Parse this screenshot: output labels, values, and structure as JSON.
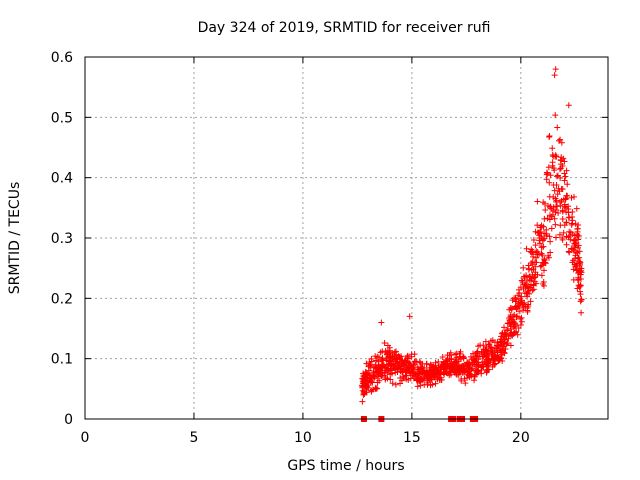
{
  "chart_data": {
    "type": "scatter",
    "title": "Day 324 of 2019, SRMTID for receiver rufi",
    "xlabel": "GPS time / hours",
    "ylabel": "SRMTID / TECUs",
    "xlim": [
      0,
      24
    ],
    "ylim": [
      0,
      0.6
    ],
    "xticks": [
      0,
      5,
      10,
      15,
      20
    ],
    "yticks": [
      0,
      0.1,
      0.2,
      0.3,
      0.4,
      0.5,
      0.6
    ],
    "grid": true,
    "marker": "+",
    "color": "#ff0000",
    "series": [
      {
        "name": "SRMTID",
        "description": "dense cloud of points from ~12.7 h to ~22.8 h",
        "envelope": [
          {
            "x": 12.7,
            "lo": 0.02,
            "hi": 0.08
          },
          {
            "x": 13.0,
            "lo": 0.03,
            "hi": 0.11
          },
          {
            "x": 13.5,
            "lo": 0.04,
            "hi": 0.12
          },
          {
            "x": 14.0,
            "lo": 0.05,
            "hi": 0.15
          },
          {
            "x": 14.5,
            "lo": 0.05,
            "hi": 0.12
          },
          {
            "x": 15.0,
            "lo": 0.05,
            "hi": 0.12
          },
          {
            "x": 15.5,
            "lo": 0.05,
            "hi": 0.1
          },
          {
            "x": 16.0,
            "lo": 0.05,
            "hi": 0.1
          },
          {
            "x": 16.5,
            "lo": 0.06,
            "hi": 0.11
          },
          {
            "x": 17.0,
            "lo": 0.06,
            "hi": 0.12
          },
          {
            "x": 17.5,
            "lo": 0.05,
            "hi": 0.11
          },
          {
            "x": 18.0,
            "lo": 0.05,
            "hi": 0.13
          },
          {
            "x": 18.5,
            "lo": 0.06,
            "hi": 0.14
          },
          {
            "x": 19.0,
            "lo": 0.07,
            "hi": 0.15
          },
          {
            "x": 19.5,
            "lo": 0.1,
            "hi": 0.2
          },
          {
            "x": 20.0,
            "lo": 0.13,
            "hi": 0.25
          },
          {
            "x": 20.5,
            "lo": 0.15,
            "hi": 0.33
          },
          {
            "x": 21.0,
            "lo": 0.18,
            "hi": 0.42
          },
          {
            "x": 21.5,
            "lo": 0.22,
            "hi": 0.56
          },
          {
            "x": 22.0,
            "lo": 0.25,
            "hi": 0.5
          },
          {
            "x": 22.5,
            "lo": 0.18,
            "hi": 0.4
          },
          {
            "x": 22.8,
            "lo": 0.15,
            "hi": 0.3
          }
        ],
        "notable_points": [
          {
            "x": 21.6,
            "y": 0.58
          },
          {
            "x": 21.55,
            "y": 0.57
          },
          {
            "x": 22.2,
            "y": 0.52
          },
          {
            "x": 14.9,
            "y": 0.17
          },
          {
            "x": 13.6,
            "y": 0.16
          }
        ]
      }
    ],
    "gap_markers": {
      "y": 0,
      "x": [
        12.8,
        13.6,
        16.8,
        16.9,
        17.2,
        17.3,
        17.8,
        17.9
      ]
    }
  }
}
